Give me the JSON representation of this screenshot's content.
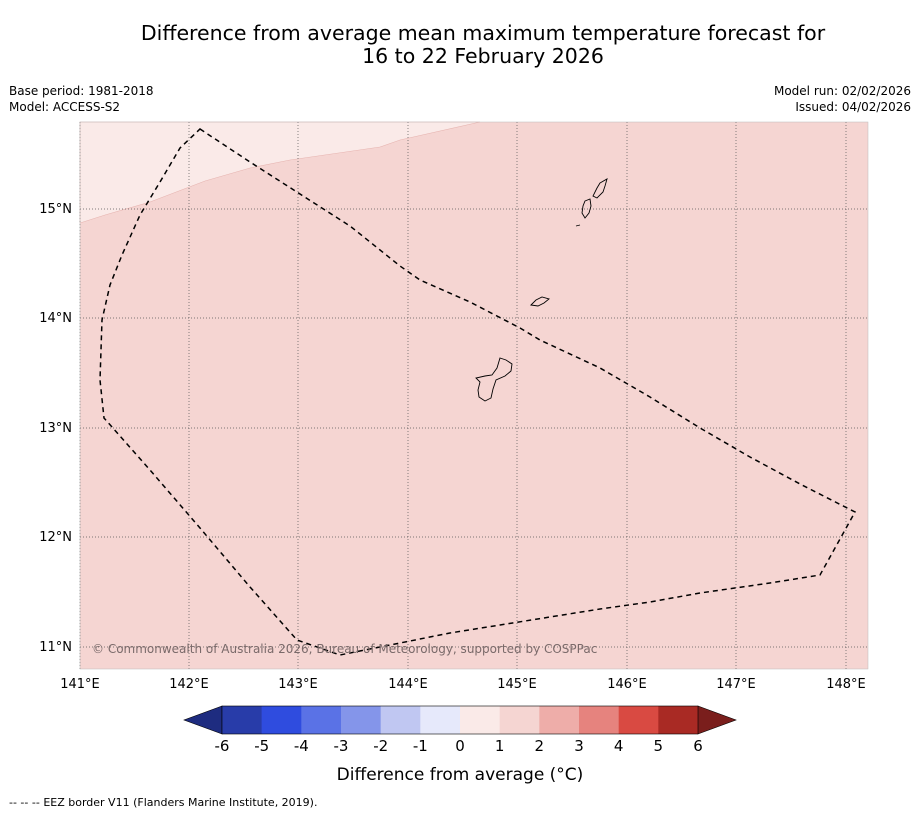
{
  "title": {
    "line1": "Difference from average mean maximum temperature forecast for",
    "line2": "16 to 22 February 2026"
  },
  "meta_left": {
    "base_period": "Base period: 1981-2018",
    "model": "Model: ACCESS-S2"
  },
  "meta_right": {
    "model_run": "Model run: 02/02/2026",
    "issued": "Issued: 04/02/2026"
  },
  "map": {
    "lon_range": [
      141,
      148.2
    ],
    "lat_range": [
      10.8,
      15.8
    ],
    "lat_labels": [
      "15°N",
      "14°N",
      "13°N",
      "12°N",
      "11°N"
    ],
    "lon_labels": [
      "141°E",
      "142°E",
      "143°E",
      "144°E",
      "145°E",
      "146°E",
      "147°E",
      "148°E"
    ],
    "copyright": "© Commonwealth of Australia 2026, Bureau of Meteorology, supported by COSPPac",
    "region_colors": {
      "zero_to_one": "#faeae8",
      "one_to_two": "#f5d5d2"
    }
  },
  "colorbar": {
    "tick_labels": [
      "-6",
      "-5",
      "-4",
      "-3",
      "-2",
      "-1",
      "0",
      "1",
      "2",
      "3",
      "4",
      "5",
      "6"
    ],
    "colors": [
      "#283ca9",
      "#2f4cdf",
      "#5a72e6",
      "#8495ea",
      "#c0c7f2",
      "#e6e9fb",
      "#faeae8",
      "#f5d5d2",
      "#eeada9",
      "#e6837e",
      "#d94a42",
      "#a92a24"
    ],
    "under_color": "#1e2c80",
    "over_color": "#7a1e1c",
    "title": "Difference from average (°C)"
  },
  "footer": {
    "legend_marker": "-- -- --",
    "legend_text": "EEZ border V11 (Flanders Marine Institute, 2019)."
  }
}
